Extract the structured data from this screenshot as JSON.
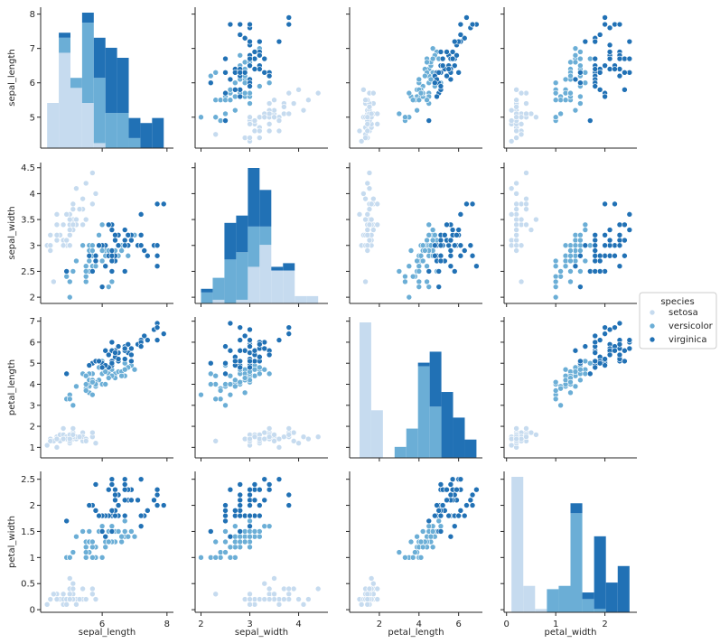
{
  "chart_data": {
    "type": "scatter",
    "title": "",
    "variables": [
      "sepal_length",
      "sepal_width",
      "petal_length",
      "petal_width"
    ],
    "ranges": {
      "sepal_length": [
        4.1,
        8.2
      ],
      "sepal_width": [
        1.88,
        4.6
      ],
      "petal_length": [
        0.5,
        7.2
      ],
      "petal_width": [
        -0.05,
        2.65
      ]
    },
    "ticks": {
      "sepal_length": [
        5,
        6,
        7,
        8
      ],
      "sepal_width": [
        2.0,
        2.5,
        3.0,
        3.5,
        4.0,
        4.5
      ],
      "petal_length": [
        1,
        2,
        3,
        4,
        5,
        6,
        7
      ],
      "petal_width": [
        0.0,
        0.5,
        1.0,
        1.5,
        2.0,
        2.5
      ]
    },
    "x_ticks": {
      "sepal_length": [
        6,
        8
      ],
      "sepal_width": [
        2,
        3,
        4
      ],
      "petal_length": [
        2,
        4,
        6
      ],
      "petal_width": [
        0,
        1,
        2
      ]
    },
    "legend": {
      "title": "species",
      "entries": [
        "setosa",
        "versicolor",
        "virginica"
      ],
      "placement": "center-right"
    },
    "series": [
      {
        "name": "setosa",
        "color": "#c6dbef",
        "sepal_length": [
          5.1,
          4.9,
          4.7,
          4.6,
          5.0,
          5.4,
          4.6,
          5.0,
          4.4,
          4.9,
          5.4,
          4.8,
          4.8,
          4.3,
          5.8,
          5.7,
          5.4,
          5.1,
          5.7,
          5.1,
          5.4,
          5.1,
          4.6,
          5.1,
          4.8,
          5.0,
          5.0,
          5.2,
          5.2,
          4.7,
          4.8,
          5.4,
          5.2,
          5.5,
          4.9,
          5.0,
          5.5,
          4.9,
          4.4,
          5.1,
          5.0,
          4.5,
          4.4,
          5.0,
          5.1,
          4.8,
          5.1,
          4.6,
          5.3,
          5.0
        ],
        "sepal_width": [
          3.5,
          3.0,
          3.2,
          3.1,
          3.6,
          3.9,
          3.4,
          3.4,
          2.9,
          3.1,
          3.7,
          3.4,
          3.0,
          3.0,
          4.0,
          4.4,
          3.9,
          3.5,
          3.8,
          3.8,
          3.4,
          3.7,
          3.6,
          3.3,
          3.4,
          3.0,
          3.4,
          3.5,
          3.4,
          3.2,
          3.1,
          3.4,
          4.1,
          4.2,
          3.1,
          3.2,
          3.5,
          3.6,
          3.0,
          3.4,
          3.5,
          2.3,
          3.2,
          3.5,
          3.8,
          3.0,
          3.8,
          3.2,
          3.7,
          3.3
        ],
        "petal_length": [
          1.4,
          1.4,
          1.3,
          1.5,
          1.4,
          1.7,
          1.4,
          1.5,
          1.4,
          1.5,
          1.5,
          1.6,
          1.4,
          1.1,
          1.2,
          1.5,
          1.3,
          1.4,
          1.7,
          1.5,
          1.7,
          1.5,
          1.0,
          1.7,
          1.9,
          1.6,
          1.6,
          1.5,
          1.4,
          1.6,
          1.6,
          1.5,
          1.5,
          1.4,
          1.5,
          1.2,
          1.3,
          1.4,
          1.3,
          1.5,
          1.3,
          1.3,
          1.3,
          1.6,
          1.9,
          1.4,
          1.6,
          1.4,
          1.5,
          1.4
        ],
        "petal_width": [
          0.2,
          0.2,
          0.2,
          0.2,
          0.2,
          0.4,
          0.3,
          0.2,
          0.2,
          0.1,
          0.2,
          0.2,
          0.1,
          0.1,
          0.2,
          0.4,
          0.4,
          0.3,
          0.3,
          0.3,
          0.2,
          0.4,
          0.2,
          0.5,
          0.2,
          0.2,
          0.4,
          0.2,
          0.2,
          0.2,
          0.2,
          0.4,
          0.1,
          0.2,
          0.2,
          0.2,
          0.2,
          0.1,
          0.2,
          0.2,
          0.3,
          0.3,
          0.2,
          0.6,
          0.4,
          0.3,
          0.2,
          0.2,
          0.2,
          0.2
        ]
      },
      {
        "name": "versicolor",
        "color": "#6baed6",
        "sepal_length": [
          7.0,
          6.4,
          6.9,
          5.5,
          6.5,
          5.7,
          6.3,
          4.9,
          6.6,
          5.2,
          5.0,
          5.9,
          6.0,
          6.1,
          5.6,
          6.7,
          5.6,
          5.8,
          6.2,
          5.6,
          5.9,
          6.1,
          6.3,
          6.1,
          6.4,
          6.6,
          6.8,
          6.7,
          6.0,
          5.7,
          5.5,
          5.5,
          5.8,
          6.0,
          5.4,
          6.0,
          6.7,
          6.3,
          5.6,
          5.5,
          5.5,
          6.1,
          5.8,
          5.0,
          5.6,
          5.7,
          5.7,
          6.2,
          5.1,
          5.7
        ],
        "sepal_width": [
          3.2,
          3.2,
          3.1,
          2.3,
          2.8,
          2.8,
          3.3,
          2.4,
          2.9,
          2.7,
          2.0,
          3.0,
          2.2,
          2.9,
          2.9,
          3.1,
          3.0,
          2.7,
          2.2,
          2.5,
          3.2,
          2.8,
          2.5,
          2.8,
          2.9,
          3.0,
          2.8,
          3.0,
          2.9,
          2.6,
          2.4,
          2.4,
          2.7,
          2.7,
          3.0,
          3.4,
          3.1,
          2.3,
          3.0,
          2.5,
          2.6,
          3.0,
          2.6,
          2.3,
          2.7,
          3.0,
          2.9,
          2.9,
          2.5,
          2.8
        ],
        "petal_length": [
          4.7,
          4.5,
          4.9,
          4.0,
          4.6,
          4.5,
          4.7,
          3.3,
          4.6,
          3.9,
          3.5,
          4.2,
          4.0,
          4.7,
          3.6,
          4.4,
          4.5,
          4.1,
          4.5,
          3.9,
          4.8,
          4.0,
          4.9,
          4.7,
          4.3,
          4.4,
          4.8,
          5.0,
          4.5,
          3.5,
          3.8,
          3.7,
          3.9,
          5.1,
          4.5,
          4.5,
          4.7,
          4.4,
          4.1,
          4.0,
          4.4,
          4.6,
          4.0,
          3.3,
          4.2,
          4.2,
          4.2,
          4.3,
          3.0,
          4.1
        ],
        "petal_width": [
          1.4,
          1.5,
          1.5,
          1.3,
          1.5,
          1.3,
          1.6,
          1.0,
          1.3,
          1.4,
          1.0,
          1.5,
          1.0,
          1.4,
          1.3,
          1.4,
          1.5,
          1.0,
          1.5,
          1.1,
          1.8,
          1.3,
          1.5,
          1.2,
          1.3,
          1.4,
          1.4,
          1.7,
          1.5,
          1.0,
          1.1,
          1.0,
          1.2,
          1.6,
          1.5,
          1.6,
          1.5,
          1.3,
          1.3,
          1.3,
          1.2,
          1.4,
          1.2,
          1.0,
          1.3,
          1.2,
          1.3,
          1.3,
          1.1,
          1.3
        ]
      },
      {
        "name": "virginica",
        "color": "#2171b5",
        "sepal_length": [
          6.3,
          5.8,
          7.1,
          6.3,
          6.5,
          7.6,
          4.9,
          7.3,
          6.7,
          7.2,
          6.5,
          6.4,
          6.8,
          5.7,
          5.8,
          6.4,
          6.5,
          7.7,
          7.7,
          6.0,
          6.9,
          5.6,
          7.7,
          6.3,
          6.7,
          7.2,
          6.2,
          6.1,
          6.4,
          7.2,
          7.4,
          7.9,
          6.4,
          6.3,
          6.1,
          7.7,
          6.3,
          6.4,
          6.0,
          6.9,
          6.7,
          6.9,
          5.8,
          6.8,
          6.7,
          6.7,
          6.3,
          6.5,
          6.2,
          5.9
        ],
        "sepal_width": [
          3.3,
          2.7,
          3.0,
          2.9,
          3.0,
          3.0,
          2.5,
          2.9,
          2.5,
          3.6,
          3.2,
          2.7,
          3.0,
          2.5,
          2.8,
          3.2,
          3.0,
          3.8,
          2.6,
          2.2,
          3.2,
          2.8,
          2.8,
          2.7,
          3.3,
          3.2,
          2.8,
          3.0,
          2.8,
          3.0,
          2.8,
          3.8,
          2.8,
          2.8,
          2.6,
          3.0,
          3.4,
          3.1,
          3.0,
          3.1,
          3.1,
          3.1,
          2.7,
          3.2,
          3.3,
          3.0,
          2.5,
          3.0,
          3.4,
          3.0
        ],
        "petal_length": [
          6.0,
          5.1,
          5.9,
          5.6,
          5.8,
          6.6,
          4.5,
          6.3,
          5.8,
          6.1,
          5.1,
          5.3,
          5.5,
          5.0,
          5.1,
          5.3,
          5.5,
          6.7,
          6.9,
          5.0,
          5.7,
          4.9,
          6.7,
          4.9,
          5.7,
          6.0,
          4.8,
          4.9,
          5.6,
          5.8,
          6.1,
          6.4,
          5.6,
          5.1,
          5.6,
          6.1,
          5.6,
          5.5,
          4.8,
          5.4,
          5.6,
          5.1,
          5.1,
          5.9,
          5.7,
          5.2,
          5.0,
          5.2,
          5.4,
          5.1
        ],
        "petal_width": [
          2.5,
          1.9,
          2.1,
          1.8,
          2.2,
          2.1,
          1.7,
          1.8,
          1.8,
          2.5,
          2.0,
          1.9,
          2.1,
          2.0,
          2.4,
          2.3,
          1.8,
          2.2,
          2.3,
          1.5,
          2.3,
          2.0,
          2.0,
          1.8,
          2.1,
          1.8,
          1.8,
          1.8,
          2.1,
          1.6,
          1.9,
          2.0,
          2.2,
          1.5,
          1.4,
          2.3,
          2.4,
          1.8,
          1.8,
          2.1,
          2.4,
          2.3,
          1.9,
          2.3,
          2.5,
          2.3,
          1.9,
          2.0,
          2.3,
          1.8
        ]
      }
    ]
  }
}
